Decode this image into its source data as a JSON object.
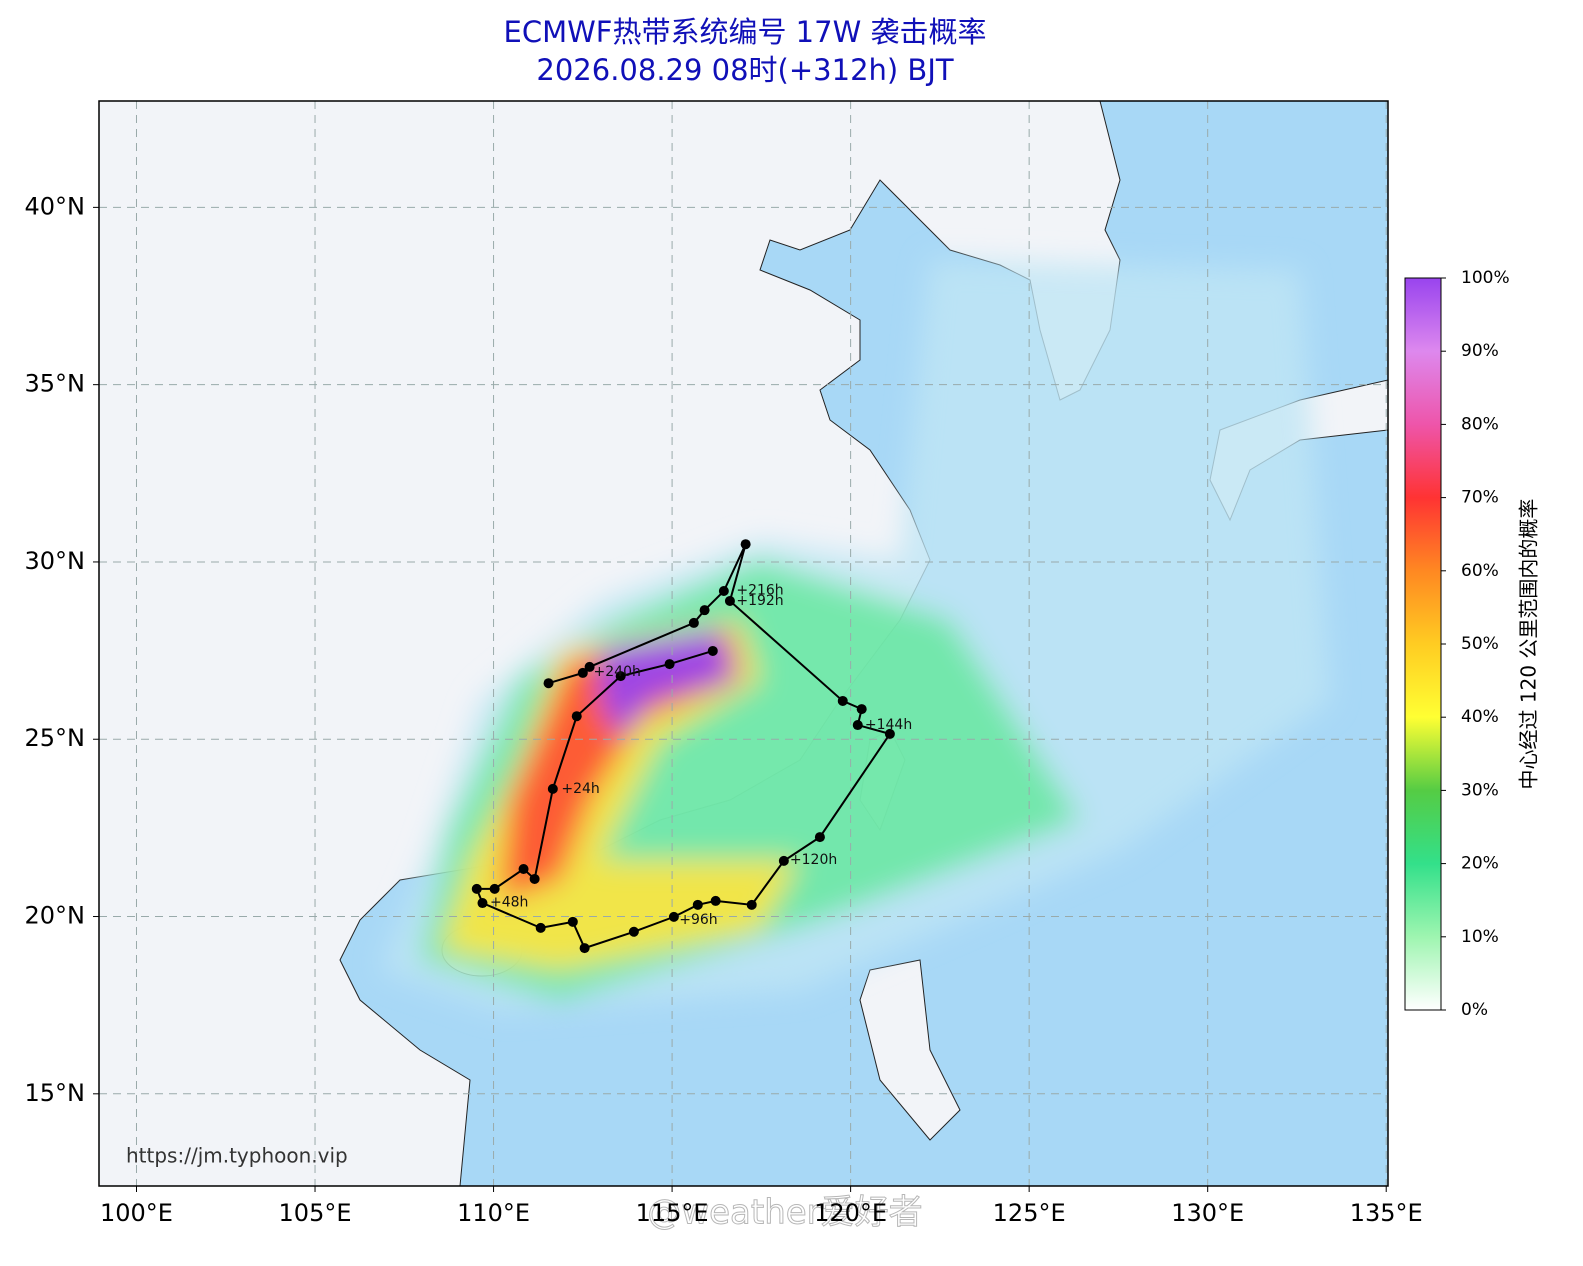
{
  "chart_data": {
    "type": "track-map",
    "title": "ECMWF热带系统编号 17W 袭击概率",
    "subtitle": "2026.08.29 08时(+312h) BJT",
    "xlim": [
      98.95,
      135.05
    ],
    "ylim": [
      12.4,
      43
    ],
    "xticks": [
      {
        "value": 100,
        "label": "100°E"
      },
      {
        "value": 105,
        "label": "105°E"
      },
      {
        "value": 110,
        "label": "110°E"
      },
      {
        "value": 115,
        "label": "115°E"
      },
      {
        "value": 120,
        "label": "120°E"
      },
      {
        "value": 125,
        "label": "125°E"
      },
      {
        "value": 130,
        "label": "130°E"
      },
      {
        "value": 135,
        "label": "135°E"
      }
    ],
    "yticks": [
      {
        "value": 15,
        "label": "15°N"
      },
      {
        "value": 20,
        "label": "20°N"
      },
      {
        "value": 25,
        "label": "25°N"
      },
      {
        "value": 30,
        "label": "30°N"
      },
      {
        "value": 35,
        "label": "35°N"
      },
      {
        "value": 40,
        "label": "40°N"
      }
    ],
    "grid": true,
    "track": {
      "lon": [
        116.14,
        114.93,
        113.56,
        112.33,
        111.66,
        111.15,
        110.84,
        110.03,
        109.53,
        109.69,
        111.32,
        112.22,
        112.55,
        113.93,
        115.05,
        115.72,
        116.22,
        117.23,
        118.13,
        119.14,
        121.1,
        120.2,
        120.31,
        119.78,
        116.62,
        117.06,
        116.45,
        115.91,
        115.61,
        112.69,
        112.5,
        111.54
      ],
      "lat": [
        27.49,
        27.12,
        26.78,
        25.65,
        23.6,
        21.06,
        21.34,
        20.78,
        20.78,
        20.38,
        19.68,
        19.85,
        19.11,
        19.57,
        19.99,
        20.33,
        20.44,
        20.33,
        21.57,
        22.24,
        25.15,
        25.4,
        25.85,
        26.08,
        28.9,
        30.5,
        29.18,
        28.64,
        28.28,
        27.04,
        26.87,
        26.58
      ]
    },
    "track_labels": [
      {
        "text": "+24h",
        "lon": 111.9,
        "lat": 23.6
      },
      {
        "text": "+48h",
        "lon": 109.9,
        "lat": 20.4
      },
      {
        "text": "+96h",
        "lon": 115.2,
        "lat": 19.9
      },
      {
        "text": "+120h",
        "lon": 118.3,
        "lat": 21.6
      },
      {
        "text": "+144h",
        "lon": 120.4,
        "lat": 25.4
      },
      {
        "text": "+192h",
        "lon": 116.8,
        "lat": 28.9
      },
      {
        "text": "+216h",
        "lon": 116.8,
        "lat": 29.2
      },
      {
        "text": "+240h",
        "lon": 112.8,
        "lat": 26.9
      }
    ],
    "colorbar": {
      "label": "中心经过 120 公里范围内的概率",
      "lim": [
        0,
        100
      ],
      "ticks": [
        {
          "value": 0,
          "label": "0%"
        },
        {
          "value": 10,
          "label": "10%"
        },
        {
          "value": 20,
          "label": "20%"
        },
        {
          "value": 30,
          "label": "30%"
        },
        {
          "value": 40,
          "label": "40%"
        },
        {
          "value": 50,
          "label": "50%"
        },
        {
          "value": 60,
          "label": "60%"
        },
        {
          "value": 70,
          "label": "70%"
        },
        {
          "value": 80,
          "label": "80%"
        },
        {
          "value": 90,
          "label": "90%"
        },
        {
          "value": 100,
          "label": "100%"
        }
      ],
      "colors": [
        "#ffffff",
        "#9ef5b0",
        "#33e08a",
        "#55cc44",
        "#ffff33",
        "#ffcc22",
        "#ff8822",
        "#ff3333",
        "#ee55aa",
        "#dd88ee",
        "#9944ee"
      ]
    },
    "source": "https://jm.typhoon.vip",
    "watermark": "@weather爱好者"
  }
}
